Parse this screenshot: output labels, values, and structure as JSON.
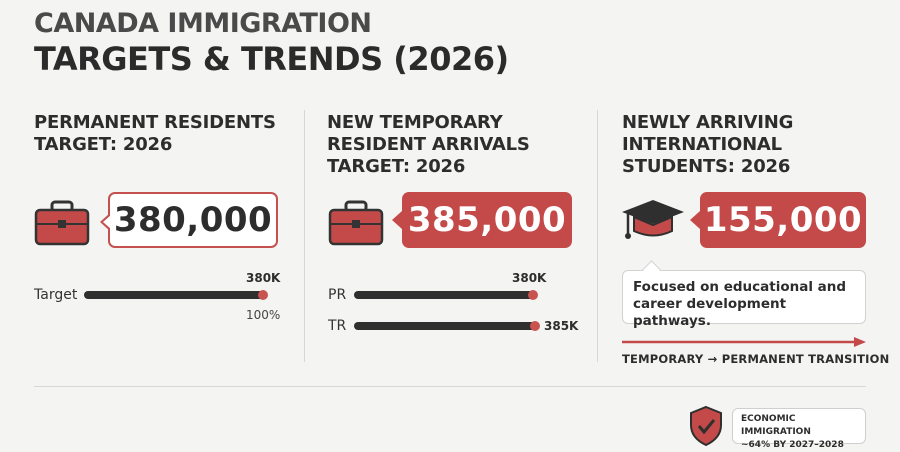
{
  "header": {
    "title_line1": "CANADA IMMIGRATION",
    "title_line2": "TARGETS & TRENDS (2026)"
  },
  "columns": [
    {
      "title_lines": [
        "PERMANENT RESIDENTS",
        "TARGET: 2026"
      ],
      "icon": "briefcase-icon",
      "value": "380,000",
      "bars": [
        {
          "label": "Target",
          "value_label": "380K",
          "value": 380000,
          "fraction": 1.0,
          "pct_label": "100%"
        }
      ]
    },
    {
      "title_lines": [
        "NEW TEMPORARY",
        "RESIDENT ARRIVALS",
        "TARGET: 2026"
      ],
      "icon": "briefcase-icon",
      "value": "385,000",
      "bars": [
        {
          "label": "PR",
          "value_label": "380K",
          "value": 380000
        },
        {
          "label": "TR",
          "value_label": "385K",
          "value": 385000
        }
      ]
    },
    {
      "title_lines": [
        "NEWLY ARRIVING",
        "INTERNATIONAL",
        "STUDENTS: 2026"
      ],
      "icon": "graduation-cap-icon",
      "value": "155,000",
      "note_lines": [
        "Focused on educational and",
        "career development pathways."
      ],
      "transition_label": "TEMPORARY → PERMANENT TRANSITION"
    }
  ],
  "badge": {
    "icon": "shield-check-icon",
    "lines": [
      "ECONOMIC IMMIGRATION",
      "~64% BY 2027–2028"
    ]
  },
  "colors": {
    "accent": "#c44a49",
    "dark": "#2f2f2f",
    "background": "#f4f4f2"
  }
}
